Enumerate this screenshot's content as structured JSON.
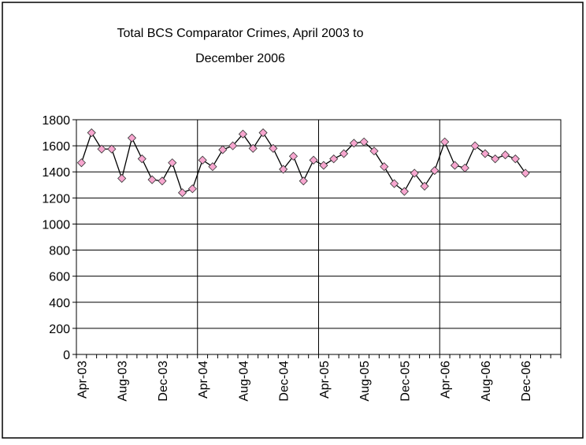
{
  "chart_data": {
    "type": "line",
    "title": [
      "Total BCS Comparator Crimes, April 2003 to",
      "December 2006"
    ],
    "categories": [
      "Apr-03",
      null,
      null,
      null,
      "Aug-03",
      null,
      null,
      null,
      "Dec-03",
      null,
      null,
      null,
      "Apr-04",
      null,
      null,
      null,
      "Aug-04",
      null,
      null,
      null,
      "Dec-04",
      null,
      null,
      null,
      "Apr-05",
      null,
      null,
      null,
      "Aug-05",
      null,
      null,
      null,
      "Dec-05",
      null,
      null,
      null,
      "Apr-06",
      null,
      null,
      null,
      "Aug-06",
      null,
      null,
      null,
      "Dec-06",
      null,
      null,
      null
    ],
    "series": [
      {
        "name": "Total BCS Comparator Crimes",
        "color": "#f7a6cf",
        "line_color": "#000000",
        "values": [
          1470,
          1700,
          1575,
          1575,
          1350,
          1660,
          1500,
          1340,
          1330,
          1470,
          1240,
          1270,
          1490,
          1440,
          1570,
          1600,
          1690,
          1580,
          1700,
          1580,
          1420,
          1520,
          1330,
          1490,
          1450,
          1500,
          1540,
          1620,
          1630,
          1560,
          1440,
          1310,
          1250,
          1390,
          1290,
          1410,
          1630,
          1450,
          1430,
          1600,
          1540,
          1500,
          1530,
          1500,
          1390,
          null,
          null,
          null
        ]
      }
    ],
    "ylim": [
      0,
      1800
    ],
    "yticks": [
      0,
      200,
      400,
      600,
      800,
      1000,
      1200,
      1400,
      1600,
      1800
    ],
    "grid": true,
    "x_grid_interval": 12
  }
}
